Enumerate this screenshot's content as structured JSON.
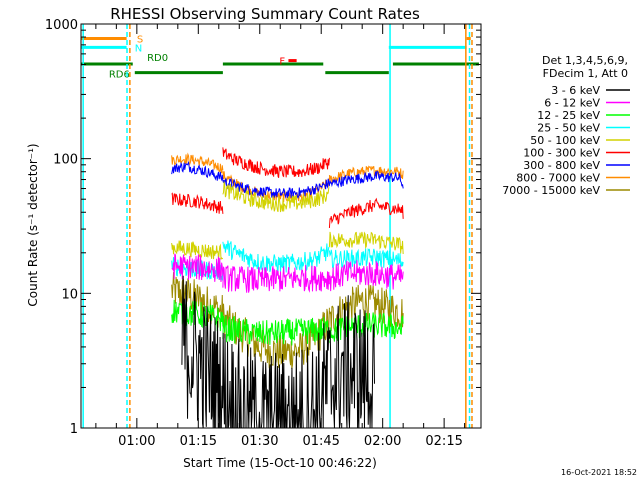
{
  "chart_data": {
    "type": "line",
    "title": "RHESSI Observing Summary Count Rates",
    "xlabel": "Start Time (15-Oct-10 00:46:22)",
    "ylabel": "Count Rate (s⁻¹ detector⁻¹)",
    "yscale": "log",
    "ylim": [
      1,
      1000
    ],
    "xlim_minutes": [
      46.37,
      144.0
    ],
    "yticks": [
      {
        "value": 1,
        "label": "1"
      },
      {
        "value": 10,
        "label": "10"
      },
      {
        "value": 100,
        "label": "100"
      },
      {
        "value": 1000,
        "label": "1000"
      }
    ],
    "xticks": [
      {
        "minute": 60,
        "label": "01:00"
      },
      {
        "minute": 75,
        "label": "01:15"
      },
      {
        "minute": 90,
        "label": "01:30"
      },
      {
        "minute": 105,
        "label": "01:45"
      },
      {
        "minute": 120,
        "label": "02:00"
      },
      {
        "minute": 135,
        "label": "02:15"
      }
    ],
    "legend_header": [
      "Det 1,3,4,5,6,9,",
      "FDecim 1, Att 0"
    ],
    "legend_position": "right",
    "series": [
      {
        "name": "3 - 6 keV",
        "color": "#000000",
        "segments": [
          [
            [
              71,
              4.5
            ],
            [
              74,
              3.5
            ],
            [
              77,
              2.6
            ],
            [
              80,
              2.0
            ],
            [
              85,
              1.3
            ],
            [
              90,
              1.1
            ],
            [
              95,
              1.1
            ],
            [
              100,
              1.2
            ],
            [
              104,
              1.5
            ],
            [
              107,
              2.2
            ],
            [
              110,
              2.8
            ],
            [
              113,
              2.7
            ],
            [
              116,
              2.4
            ],
            [
              118,
              2.0
            ]
          ]
        ]
      },
      {
        "name": "6 - 12 keV",
        "color": "#ff00ff",
        "segments": [
          [
            [
              68.5,
              16
            ],
            [
              75,
              15.5
            ],
            [
              81,
              15
            ]
          ],
          [
            [
              81,
              13
            ],
            [
              90,
              12.5
            ],
            [
              100,
              13
            ],
            [
              107,
              13
            ]
          ],
          [
            [
              107,
              13
            ],
            [
              112,
              14
            ],
            [
              118,
              14
            ],
            [
              125,
              13
            ]
          ]
        ]
      },
      {
        "name": "12 - 25 keV",
        "color": "#00ff00",
        "segments": [
          [
            [
              68.5,
              7.5
            ],
            [
              72,
              7.2
            ],
            [
              77,
              6.8
            ],
            [
              81,
              6.3
            ]
          ],
          [
            [
              81,
              5.5
            ],
            [
              90,
              5.0
            ],
            [
              100,
              5.2
            ],
            [
              107,
              5.4
            ]
          ],
          [
            [
              107,
              5.2
            ],
            [
              112,
              5.6
            ],
            [
              118,
              5.8
            ],
            [
              125,
              5.5
            ]
          ]
        ]
      },
      {
        "name": "25 - 50 keV",
        "color": "#00ffff",
        "segments": [
          [
            [
              68.5,
              16
            ],
            [
              75,
              15
            ],
            [
              81,
              14.5
            ]
          ],
          [
            [
              81,
              23
            ],
            [
              84,
              20
            ],
            [
              90,
              17
            ],
            [
              95,
              16.5
            ],
            [
              100,
              17
            ],
            [
              104,
              18
            ],
            [
              107,
              21
            ]
          ],
          [
            [
              107,
              18
            ],
            [
              112,
              18
            ],
            [
              118,
              18.5
            ],
            [
              124,
              17.5
            ],
            [
              125,
              17
            ]
          ]
        ]
      },
      {
        "name": "50 - 100 keV",
        "color": "#d2d200",
        "segments": [
          [
            [
              68.5,
              22
            ],
            [
              75,
              21
            ],
            [
              81,
              20
            ]
          ],
          [
            [
              81,
              60
            ],
            [
              85,
              53
            ],
            [
              90,
              48
            ],
            [
              95,
              46
            ],
            [
              100,
              47
            ],
            [
              104,
              50
            ],
            [
              107,
              55
            ]
          ],
          [
            [
              107,
              25
            ],
            [
              112,
              25
            ],
            [
              118,
              25
            ],
            [
              124,
              23
            ],
            [
              125,
              22
            ]
          ]
        ]
      },
      {
        "name": "100 - 300 keV",
        "color": "#ff0000",
        "segments": [
          [
            [
              68.5,
              50
            ],
            [
              75,
              48
            ],
            [
              81,
              43
            ]
          ],
          [
            [
              81,
              110
            ],
            [
              84,
              98
            ],
            [
              90,
              85
            ],
            [
              95,
              80
            ],
            [
              100,
              80
            ],
            [
              104,
              85
            ],
            [
              107,
              95
            ]
          ],
          [
            [
              107,
              34
            ],
            [
              112,
              40
            ],
            [
              118,
              45
            ],
            [
              124,
              42
            ],
            [
              125,
              40
            ]
          ]
        ]
      },
      {
        "name": "300 - 800 keV",
        "color": "#0000ff",
        "segments": [
          [
            [
              68.5,
              84
            ],
            [
              72,
              88
            ],
            [
              76,
              82
            ],
            [
              81,
              72
            ]
          ],
          [
            [
              81,
              68
            ],
            [
              85,
              62
            ],
            [
              90,
              57
            ],
            [
              95,
              55
            ],
            [
              100,
              56
            ],
            [
              104,
              60
            ],
            [
              107,
              66
            ]
          ],
          [
            [
              107,
              65
            ],
            [
              112,
              70
            ],
            [
              118,
              74
            ],
            [
              124,
              72
            ],
            [
              125,
              64
            ]
          ]
        ]
      },
      {
        "name": "800 - 7000 keV",
        "color": "#ff8c00",
        "segments": [
          [
            [
              68.5,
              98
            ],
            [
              72,
              100
            ],
            [
              76,
              95
            ],
            [
              81,
              85
            ]
          ],
          [
            [
              81,
              75
            ],
            [
              85,
              63
            ],
            [
              90,
              55
            ],
            [
              95,
              52
            ],
            [
              100,
              52
            ],
            [
              104,
              58
            ],
            [
              107,
              67
            ]
          ],
          [
            [
              107,
              70
            ],
            [
              112,
              78
            ],
            [
              118,
              82
            ],
            [
              124,
              80
            ],
            [
              125,
              76
            ]
          ]
        ]
      },
      {
        "name": "7000 - 15000 keV",
        "color": "#9c8a00",
        "segments": [
          [
            [
              68.5,
              10.5
            ],
            [
              72,
              10
            ],
            [
              77,
              8.5
            ],
            [
              81,
              7.2
            ]
          ],
          [
            [
              81,
              6.5
            ],
            [
              85,
              5.2
            ],
            [
              90,
              4.0
            ],
            [
              95,
              3.6
            ],
            [
              100,
              3.8
            ],
            [
              104,
              4.8
            ],
            [
              107,
              6.2
            ]
          ],
          [
            [
              107,
              6.2
            ],
            [
              110,
              7.5
            ],
            [
              115,
              8.8
            ],
            [
              120,
              8.0
            ],
            [
              125,
              7.2
            ]
          ]
        ]
      }
    ],
    "state_bars": [
      {
        "label": "S",
        "color": "#ff8c00",
        "y_value": 780,
        "ranges": [
          [
            46.37,
            57.5
          ],
          [
            140.5,
            141.5
          ]
        ]
      },
      {
        "label": "N",
        "color": "#00ffff",
        "y_value": 670,
        "ranges": [
          [
            46.37,
            57.5
          ],
          [
            121.5,
            140.5
          ]
        ]
      },
      {
        "label": "RD0",
        "color": "#008000",
        "y_value": 505,
        "ranges": [
          [
            46.37,
            59
          ],
          [
            81,
            105.5
          ],
          [
            122.5,
            143.5
          ]
        ]
      },
      {
        "label": "RD6",
        "color": "#008000",
        "y_value": 435,
        "ranges": [
          [
            59.5,
            81
          ],
          [
            106,
            121.5
          ]
        ]
      },
      {
        "label": "F",
        "color": "#ff0000",
        "y_value": 535,
        "ranges": [
          [
            97,
            99
          ]
        ]
      }
    ],
    "vertical_markers": [
      {
        "minute": 46.9,
        "color": "#00ffff",
        "style": "solid"
      },
      {
        "minute": 57.6,
        "color": "#00ffff",
        "style": "dashed"
      },
      {
        "minute": 58.3,
        "color": "#ff8c00",
        "style": "dashed"
      },
      {
        "minute": 121.8,
        "color": "#00ffff",
        "style": "solid"
      },
      {
        "minute": 140.3,
        "color": "#ff8c00",
        "style": "solid"
      },
      {
        "minute": 141.2,
        "color": "#00ffff",
        "style": "dashed"
      },
      {
        "minute": 141.8,
        "color": "#ff8c00",
        "style": "dashed"
      }
    ],
    "timestamp": "16-Oct-2021 18:52"
  }
}
